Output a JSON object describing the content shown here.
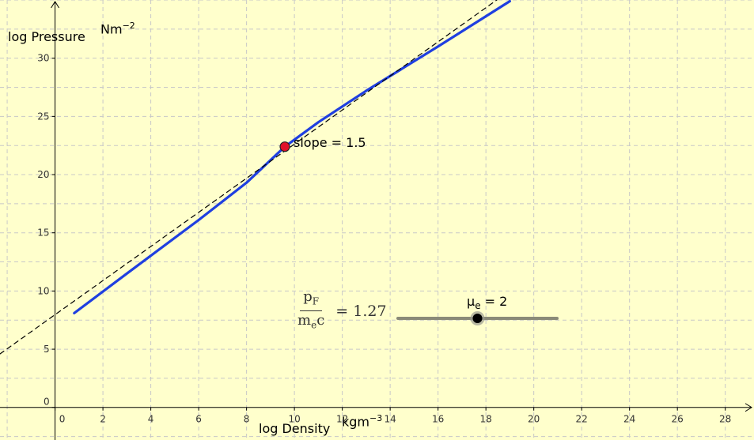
{
  "chart_data": {
    "type": "line",
    "xlabel": "log Density",
    "xunit": "kgm",
    "xunit_exp": "−3",
    "ylabel": "log Pressure",
    "yunit": "Nm",
    "yunit_exp": "−2",
    "xlim": [
      -2.3,
      29.2
    ],
    "ylim": [
      -2.8,
      35.0
    ],
    "x_ticks": [
      0,
      2,
      4,
      6,
      8,
      10,
      12,
      14,
      16,
      18,
      20,
      22,
      24,
      26,
      28
    ],
    "y_ticks": [
      0,
      5,
      10,
      15,
      20,
      25,
      30
    ],
    "grid": true,
    "series": [
      {
        "style": "solid",
        "color": "#1F3FE0",
        "points": [
          [
            0.8,
            8.1
          ],
          [
            3.0,
            11.5
          ],
          [
            6.0,
            16.1
          ],
          [
            8.0,
            19.3
          ],
          [
            9.6,
            22.4
          ],
          [
            11.0,
            24.5
          ],
          [
            13.0,
            27.2
          ],
          [
            16.0,
            31.0
          ],
          [
            19.0,
            34.9
          ]
        ]
      },
      {
        "style": "dashed",
        "color": "#000000",
        "points": [
          [
            -2.3,
            4.6
          ],
          [
            19.0,
            35.8
          ]
        ]
      }
    ],
    "annotations": [
      {
        "x": 9.6,
        "y": 22.4,
        "text": "slope = 1.5",
        "point_color": "#E0102A"
      }
    ]
  },
  "formula": {
    "num_base": "p",
    "num_sub": "F",
    "den_base": "m",
    "den_sub": "e",
    "den_tail": "c",
    "equals_text": "= 1.27"
  },
  "slider": {
    "label_base": "μ",
    "label_sub": "e",
    "label_value": "= 2",
    "min": 1,
    "max": 3,
    "value": 2
  }
}
